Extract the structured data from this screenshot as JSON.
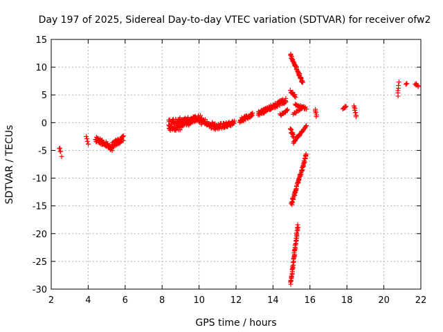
{
  "chart_data": {
    "type": "scatter",
    "title": "Day 197 of 2025, Sidereal Day-to-day VTEC variation (SDTVAR) for receiver ofw2",
    "xlabel": "GPS time / hours",
    "ylabel": "SDTVAR / TECUs",
    "xlim": [
      2,
      22
    ],
    "ylim": [
      -30,
      15
    ],
    "xticks": [
      2,
      4,
      6,
      8,
      10,
      12,
      14,
      16,
      18,
      20,
      22
    ],
    "yticks": [
      -30,
      -25,
      -20,
      -15,
      -10,
      -5,
      0,
      5,
      10,
      15
    ],
    "xtick_labels": [
      "2",
      "4",
      "6",
      "8",
      "10",
      "12",
      "14",
      "16",
      "18",
      "20",
      "22"
    ],
    "ytick_labels": [
      "-30",
      "-25",
      "-20",
      "-15",
      "-10",
      "-5",
      "0",
      "5",
      "10",
      "15"
    ],
    "grid": true,
    "marker": "+",
    "color": "#ff0000",
    "segments": [
      {
        "x0": 2.45,
        "x1": 2.55,
        "y0": -4.5,
        "y1": -5.8,
        "n": 5,
        "spread": 0.6
      },
      {
        "x0": 3.9,
        "x1": 4.0,
        "y0": -2.3,
        "y1": -4.0,
        "n": 4,
        "spread": 0.5
      },
      {
        "x0": 4.4,
        "x1": 4.8,
        "y0": -3.0,
        "y1": -3.6,
        "n": 30,
        "spread": 0.9
      },
      {
        "x0": 4.8,
        "x1": 5.3,
        "y0": -3.5,
        "y1": -4.6,
        "n": 30,
        "spread": 1.0
      },
      {
        "x0": 5.3,
        "x1": 5.9,
        "y0": -4.0,
        "y1": -2.8,
        "n": 40,
        "spread": 1.0
      },
      {
        "x0": 8.35,
        "x1": 9.0,
        "y0": -0.6,
        "y1": -0.2,
        "n": 60,
        "spread": 2.2
      },
      {
        "x0": 9.0,
        "x1": 9.5,
        "y0": -0.2,
        "y1": 0.4,
        "n": 40,
        "spread": 1.6
      },
      {
        "x0": 9.5,
        "x1": 10.1,
        "y0": 0.5,
        "y1": 0.8,
        "n": 40,
        "spread": 1.2
      },
      {
        "x0": 10.1,
        "x1": 10.9,
        "y0": 0.3,
        "y1": -0.7,
        "n": 45,
        "spread": 1.2
      },
      {
        "x0": 10.9,
        "x1": 11.5,
        "y0": -0.8,
        "y1": -0.4,
        "n": 35,
        "spread": 1.0
      },
      {
        "x0": 11.5,
        "x1": 11.9,
        "y0": -0.4,
        "y1": 0.0,
        "n": 25,
        "spread": 0.8
      },
      {
        "x0": 12.2,
        "x1": 12.9,
        "y0": 0.4,
        "y1": 1.4,
        "n": 35,
        "spread": 0.8
      },
      {
        "x0": 13.2,
        "x1": 13.9,
        "y0": 1.6,
        "y1": 2.8,
        "n": 40,
        "spread": 0.8
      },
      {
        "x0": 13.9,
        "x1": 14.7,
        "y0": 2.8,
        "y1": 4.0,
        "n": 45,
        "spread": 0.9
      },
      {
        "x0": 14.4,
        "x1": 14.8,
        "y0": 1.4,
        "y1": 2.2,
        "n": 15,
        "spread": 0.4
      },
      {
        "x0": 14.95,
        "x1": 15.6,
        "y0": 12.2,
        "y1": 7.2,
        "n": 45,
        "spread": 0.6
      },
      {
        "x0": 14.95,
        "x1": 15.2,
        "y0": 5.8,
        "y1": 4.8,
        "n": 12,
        "spread": 0.5
      },
      {
        "x0": 15.2,
        "x1": 15.8,
        "y0": 3.2,
        "y1": 2.6,
        "n": 20,
        "spread": 0.4
      },
      {
        "x0": 15.1,
        "x1": 15.6,
        "y0": 1.6,
        "y1": 2.6,
        "n": 12,
        "spread": 0.3
      },
      {
        "x0": 14.95,
        "x1": 15.1,
        "y0": -1.2,
        "y1": -2.5,
        "n": 12,
        "spread": 0.5
      },
      {
        "x0": 15.1,
        "x1": 15.8,
        "y0": -3.6,
        "y1": -0.6,
        "n": 25,
        "spread": 0.4
      },
      {
        "x0": 15.0,
        "x1": 15.8,
        "y0": -14.8,
        "y1": -5.8,
        "n": 60,
        "spread": 0.6
      },
      {
        "x0": 14.95,
        "x1": 15.35,
        "y0": -29.0,
        "y1": -18.5,
        "n": 50,
        "spread": 0.3
      },
      {
        "x0": 16.3,
        "x1": 16.35,
        "y0": 2.3,
        "y1": 1.2,
        "n": 6,
        "spread": 0.3
      },
      {
        "x0": 17.8,
        "x1": 17.95,
        "y0": 2.5,
        "y1": 3.0,
        "n": 8,
        "spread": 0.3
      },
      {
        "x0": 18.4,
        "x1": 18.5,
        "y0": 3.0,
        "y1": 1.2,
        "n": 8,
        "spread": 0.3
      },
      {
        "x0": 20.75,
        "x1": 20.8,
        "y0": 4.8,
        "y1": 7.2,
        "n": 6,
        "spread": 0.3
      },
      {
        "x0": 21.2,
        "x1": 21.25,
        "y0": 6.9,
        "y1": 7.1,
        "n": 3,
        "spread": 0.1
      },
      {
        "x0": 21.7,
        "x1": 21.85,
        "y0": 7.0,
        "y1": 6.5,
        "n": 6,
        "spread": 0.3
      }
    ]
  }
}
